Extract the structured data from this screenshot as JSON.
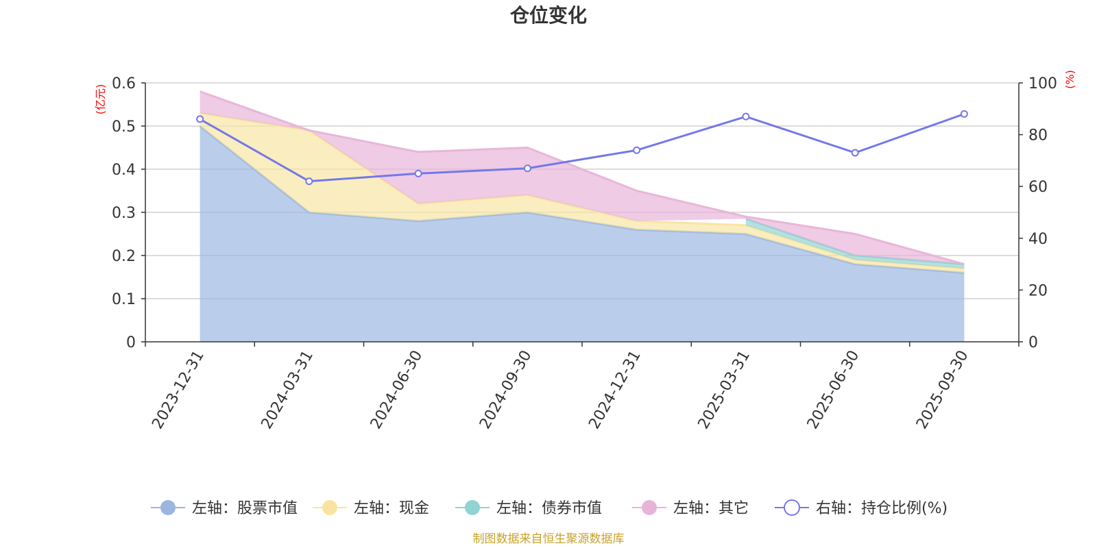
{
  "chart_data": {
    "type": "area",
    "title": "仓位变化",
    "categories": [
      "2023-12-31",
      "2024-03-31",
      "2024-06-30",
      "2024-09-30",
      "2024-12-31",
      "2025-03-31",
      "2025-06-30",
      "2025-09-30"
    ],
    "left_axis": {
      "unit": "(亿元)",
      "min": 0,
      "max": 0.6,
      "ticks": [
        "0",
        "0.1",
        "0.2",
        "0.3",
        "0.4",
        "0.5",
        "0.6"
      ]
    },
    "right_axis": {
      "unit": "(%)",
      "min": 0,
      "max": 100,
      "ticks": [
        "0",
        "20",
        "40",
        "60",
        "80",
        "100"
      ]
    },
    "series": [
      {
        "name": "左轴：股票市值",
        "axis": "left",
        "stacked": true,
        "color": "#9ab5e0",
        "values": [
          0.5,
          0.3,
          0.28,
          0.3,
          0.26,
          0.25,
          0.18,
          0.16
        ]
      },
      {
        "name": "左轴：现金",
        "axis": "left",
        "stacked": true,
        "color": "#f8e4a0",
        "values": [
          0.03,
          0.19,
          0.04,
          0.04,
          0.02,
          0.02,
          0.01,
          0.01
        ]
      },
      {
        "name": "左轴：债券市值",
        "axis": "left",
        "stacked": true,
        "color": "#8fd3d3",
        "values": [
          null,
          null,
          null,
          null,
          null,
          0.015,
          0.01,
          0.01
        ]
      },
      {
        "name": "左轴：其它",
        "axis": "left",
        "stacked": true,
        "color": "#e8b3d8",
        "values": [
          0.05,
          0.0,
          0.12,
          0.11,
          0.07,
          0.005,
          0.05,
          0.0
        ]
      },
      {
        "name": "右轴：持仓比例(%)",
        "axis": "right",
        "type": "line",
        "color": "#7378ea",
        "values": [
          86,
          62,
          65,
          67,
          74,
          87,
          73,
          88
        ]
      }
    ],
    "legend_position": "bottom",
    "grid": true,
    "source": "制图数据来自恒生聚源数据库"
  }
}
